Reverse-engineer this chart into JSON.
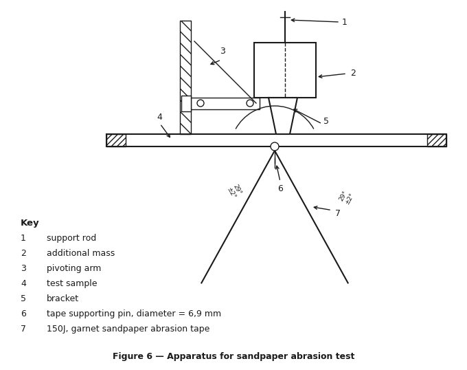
{
  "title": "Figure 6 — Apparatus for sandpaper abrasion test",
  "key_title": "Key",
  "key_items": [
    [
      "1",
      "support rod"
    ],
    [
      "2",
      "additional mass"
    ],
    [
      "3",
      "pivoting arm"
    ],
    [
      "4",
      "test sample"
    ],
    [
      "5",
      "bracket"
    ],
    [
      "6",
      "tape supporting pin, diameter = 6,9 mm"
    ],
    [
      "7",
      "150J, garnet sandpaper abrasion tape"
    ]
  ],
  "bg_color": "#ffffff",
  "line_color": "#1a1a1a",
  "fig_width": 6.8,
  "fig_height": 5.38,
  "dpi": 100
}
